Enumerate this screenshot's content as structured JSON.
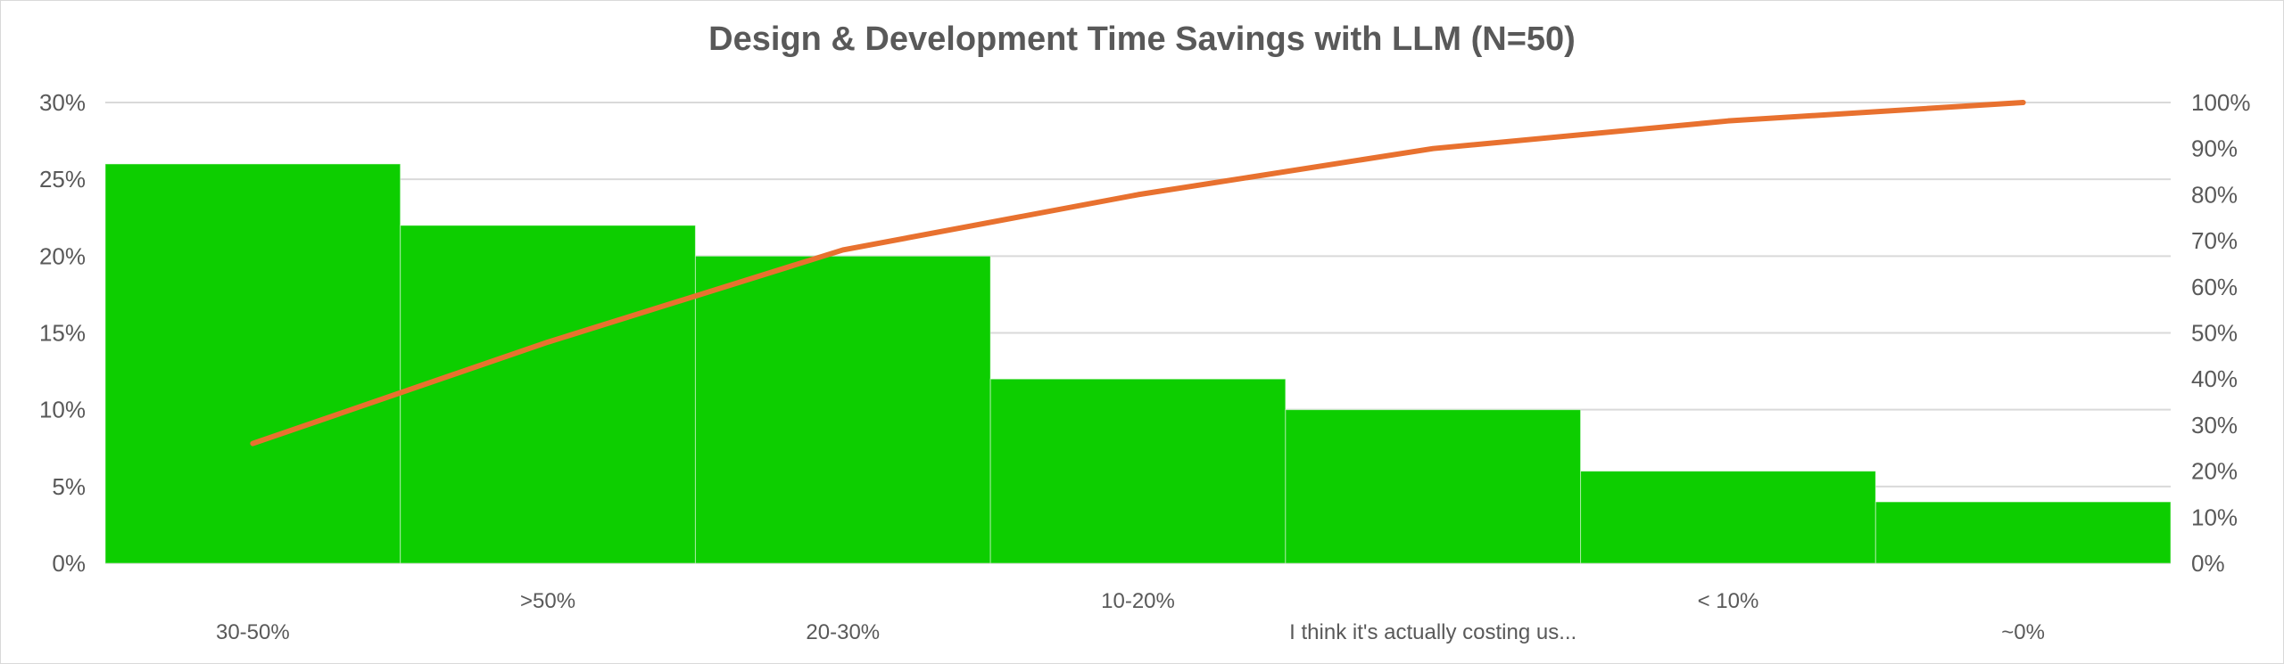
{
  "chart_data": {
    "type": "bar",
    "title": "Design & Development Time Savings with LLM (N=50)",
    "categories": [
      "30-50%",
      ">50%",
      "20-30%",
      "10-20%",
      "I think it's actually costing us...",
      "< 10%",
      "~0%"
    ],
    "series": [
      {
        "kind": "bar",
        "values": [
          26,
          22,
          20,
          12,
          10,
          6,
          4
        ]
      },
      {
        "kind": "line",
        "axis": "right",
        "values": [
          26,
          48,
          68,
          80,
          90,
          96,
          100
        ]
      }
    ],
    "y_left": {
      "range": [
        0,
        30
      ],
      "ticks": [
        "0%",
        "5%",
        "10%",
        "15%",
        "20%",
        "25%",
        "30%"
      ]
    },
    "y_right": {
      "range": [
        0,
        100
      ],
      "ticks": [
        "0%",
        "10%",
        "20%",
        "30%",
        "40%",
        "50%",
        "60%",
        "70%",
        "80%",
        "90%",
        "100%"
      ]
    },
    "grid": true,
    "legend": "none",
    "colors": {
      "bars": "#0dce00",
      "line": "#e8712f",
      "grid": "#d9d9d9",
      "text": "#595959"
    }
  }
}
